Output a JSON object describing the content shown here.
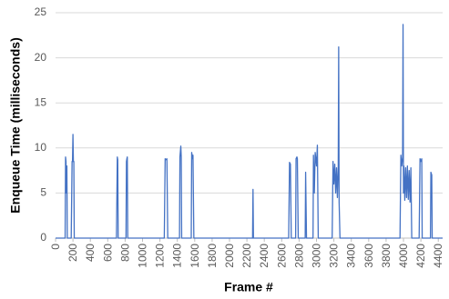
{
  "chart_data": {
    "type": "line",
    "xlabel": "Frame #",
    "ylabel": "Enqueue Time (milliseconds)",
    "xlim": [
      0,
      4450
    ],
    "xticks": [
      0,
      200,
      400,
      600,
      800,
      1000,
      1200,
      1400,
      1600,
      1800,
      2000,
      2200,
      2400,
      2600,
      2800,
      3000,
      3200,
      3400,
      3600,
      3800,
      4000,
      4200,
      4400
    ],
    "ylim": [
      0,
      25
    ],
    "yticks": [
      0,
      5,
      10,
      15,
      20,
      25
    ],
    "grid": true,
    "series": [
      {
        "color": "#4472c4",
        "x": [
          0,
          110,
          115,
          120,
          125,
          130,
          135,
          180,
          190,
          195,
          200,
          205,
          210,
          215,
          700,
          710,
          715,
          720,
          810,
          815,
          820,
          825,
          830,
          1250,
          1260,
          1270,
          1280,
          1290,
          1425,
          1430,
          1440,
          1445,
          1450,
          1560,
          1565,
          1575,
          1580,
          1590,
          2265,
          2270,
          2275,
          2680,
          2690,
          2700,
          2710,
          2760,
          2765,
          2775,
          2780,
          2790,
          2870,
          2875,
          2885,
          2960,
          2965,
          2975,
          2985,
          3000,
          3010,
          3020,
          3180,
          3190,
          3200,
          3210,
          3220,
          3230,
          3240,
          3250,
          3255,
          3260,
          3270,
          3960,
          3970,
          3980,
          3990,
          3995,
          4000,
          4005,
          4015,
          4025,
          4035,
          4045,
          4055,
          4065,
          4075,
          4085,
          4095,
          4180,
          4190,
          4200,
          4210,
          4215,
          4310,
          4315,
          4325,
          4330,
          4450
        ],
        "values": [
          0,
          0,
          9,
          8.5,
          5,
          8,
          0,
          0,
          8.5,
          8.5,
          11.5,
          8.5,
          8.5,
          0,
          0,
          9,
          8.7,
          0,
          0,
          8.5,
          8.8,
          9,
          0,
          0,
          8.8,
          8.7,
          8.8,
          0,
          0,
          9,
          10.2,
          9,
          0,
          0,
          9.5,
          8.8,
          9.2,
          0,
          0,
          5.4,
          0,
          0,
          8.4,
          8.2,
          0,
          0,
          8.8,
          9,
          8.8,
          0,
          0,
          7.3,
          0,
          0,
          9.2,
          5,
          9.5,
          8,
          10.3,
          0,
          0,
          8.5,
          6,
          8.2,
          5,
          7.8,
          4.5,
          8,
          21.2,
          4,
          0,
          0,
          9.2,
          8,
          9,
          23.7,
          5,
          8,
          4.2,
          7.8,
          4.5,
          8,
          4.3,
          7.5,
          4,
          7.8,
          0,
          0,
          8.8,
          8.5,
          8.8,
          0,
          0,
          7.3,
          7,
          0,
          0
        ]
      }
    ]
  }
}
